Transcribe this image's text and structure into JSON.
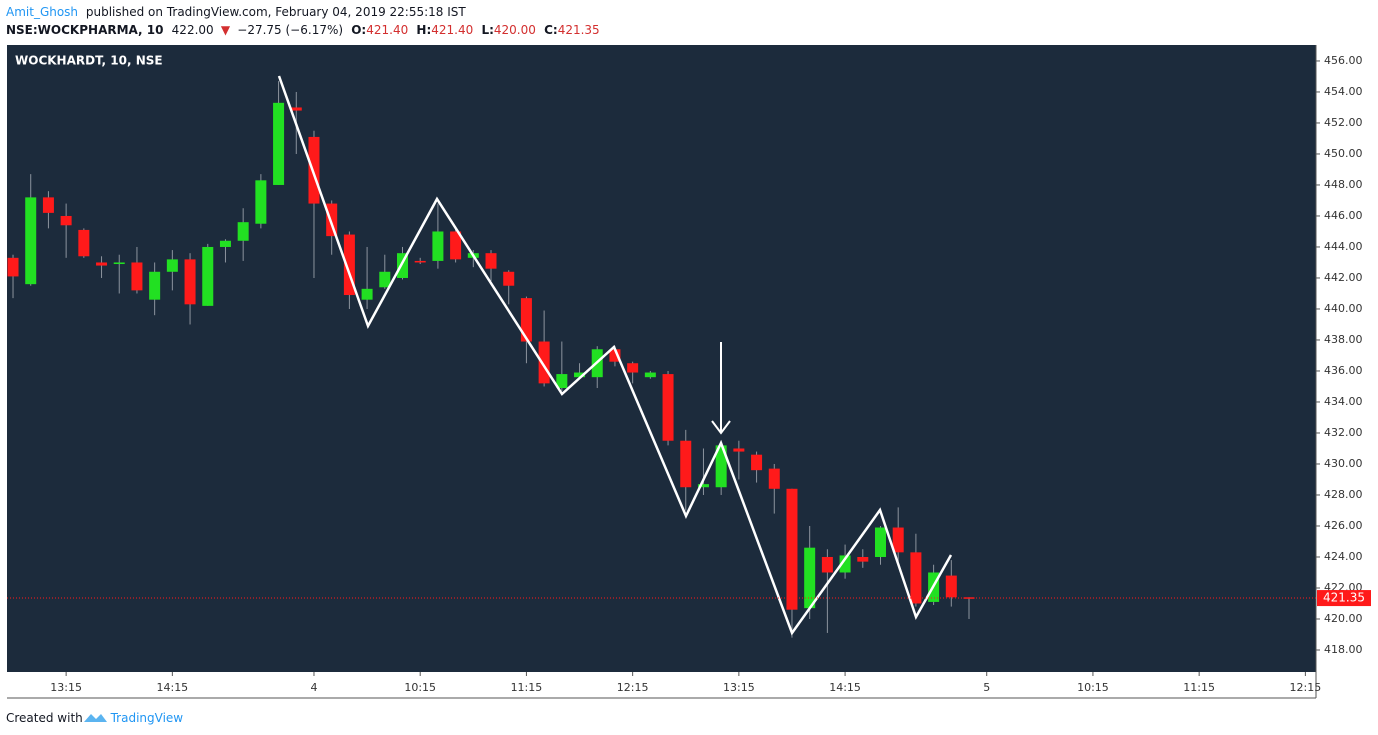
{
  "header": {
    "author": "Amit_Ghosh",
    "published": "published on TradingView.com, February 04, 2019 22:55:18 IST",
    "symbol": "NSE:WOCKPHARMA, 10",
    "price": "422.00",
    "direction": "▼",
    "change": "−27.75 (−6.17%)",
    "o_label": "O:",
    "o_value": "421.40",
    "h_label": "H:",
    "h_value": "421.40",
    "l_label": "L:",
    "l_value": "420.00",
    "c_label": "C:",
    "c_value": "421.35"
  },
  "footer": {
    "created": "Created with",
    "brand": "TradingView"
  },
  "chart_data": {
    "type": "candlestick",
    "title": "WOCKHARDT, 10, NSE",
    "open": [
      443.3,
      441.6,
      447.2,
      446.0,
      445.1,
      443.0,
      442.9,
      443.0,
      440.6,
      442.4,
      443.2,
      440.2,
      444.0,
      444.4,
      445.5,
      448.0,
      453.0,
      451.1,
      446.8,
      444.8,
      440.6,
      441.4,
      442.0,
      443.1,
      443.1,
      445.0,
      443.3,
      443.6,
      442.4,
      440.7,
      437.9,
      434.9,
      435.6,
      435.6,
      437.4,
      436.5,
      435.6,
      435.8,
      431.5,
      428.5,
      428.5,
      431.0,
      430.6,
      429.7,
      428.4,
      420.7,
      424.0,
      423.0,
      424.0,
      424.0,
      425.9,
      424.3,
      421.1,
      422.8,
      421.4
    ],
    "high": [
      443.5,
      448.7,
      447.6,
      446.8,
      445.2,
      443.4,
      443.5,
      444.0,
      443.0,
      443.8,
      443.6,
      444.2,
      444.5,
      446.5,
      448.7,
      454.7,
      454.0,
      451.5,
      447.0,
      445.0,
      444.0,
      443.5,
      444.0,
      443.3,
      446.8,
      445.2,
      443.8,
      443.8,
      442.5,
      440.8,
      439.9,
      437.9,
      436.5,
      437.6,
      437.6,
      436.6,
      436.0,
      436.0,
      432.2,
      431.0,
      431.3,
      431.5,
      430.8,
      430.0,
      428.4,
      426.0,
      424.5,
      424.8,
      424.5,
      426.0,
      427.2,
      425.5,
      423.5,
      423.8,
      421.4
    ],
    "low": [
      440.7,
      441.5,
      445.2,
      443.3,
      443.3,
      442.0,
      441.0,
      441.0,
      439.6,
      441.2,
      439.0,
      440.2,
      443.0,
      443.1,
      445.2,
      448.0,
      450.0,
      442.0,
      443.5,
      440.0,
      440.0,
      441.3,
      441.9,
      442.9,
      442.6,
      443.0,
      442.7,
      441.8,
      440.3,
      436.5,
      435.0,
      434.7,
      435.5,
      434.9,
      436.3,
      435.2,
      435.5,
      431.2,
      427.0,
      428.0,
      428.0,
      429.0,
      428.8,
      426.8,
      418.8,
      420.0,
      419.1,
      422.6,
      423.3,
      423.5,
      423.7,
      420.8,
      420.9,
      420.8,
      420.0
    ],
    "close": [
      442.1,
      447.2,
      446.2,
      445.4,
      443.4,
      442.8,
      443.0,
      441.2,
      442.4,
      443.2,
      440.3,
      444.0,
      444.4,
      445.6,
      448.3,
      453.3,
      452.8,
      446.8,
      444.7,
      440.9,
      441.3,
      442.4,
      443.6,
      443.0,
      445.0,
      443.2,
      443.6,
      442.6,
      441.5,
      437.9,
      435.2,
      435.8,
      435.9,
      437.4,
      436.6,
      435.9,
      435.9,
      431.5,
      428.5,
      428.7,
      431.2,
      430.8,
      429.6,
      428.4,
      420.6,
      424.6,
      423.0,
      424.1,
      423.7,
      425.9,
      424.3,
      421.0,
      423.0,
      421.4,
      421.35
    ],
    "up_color": "#22e022",
    "down_color": "#ff1a1a",
    "wick_color": "#8c949e",
    "background": "#1c2b3c",
    "last_price": 421.35,
    "last_price_color": "#ff1a1a",
    "ylim": [
      416.58,
      457.03
    ],
    "yticks": [
      {
        "value": 418,
        "label": "418.00"
      },
      {
        "value": 420,
        "label": "420.00"
      },
      {
        "value": 422,
        "label": "422.00"
      },
      {
        "value": 424,
        "label": "424.00"
      },
      {
        "value": 426,
        "label": "426.00"
      },
      {
        "value": 428,
        "label": "428.00"
      },
      {
        "value": 430,
        "label": "430.00"
      },
      {
        "value": 432,
        "label": "432.00"
      },
      {
        "value": 434,
        "label": "434.00"
      },
      {
        "value": 436,
        "label": "436.00"
      },
      {
        "value": 438,
        "label": "438.00"
      },
      {
        "value": 440,
        "label": "440.00"
      },
      {
        "value": 442,
        "label": "442.00"
      },
      {
        "value": 444,
        "label": "444.00"
      },
      {
        "value": 446,
        "label": "446.00"
      },
      {
        "value": 448,
        "label": "448.00"
      },
      {
        "value": 450,
        "label": "450.00"
      },
      {
        "value": 452,
        "label": "452.00"
      },
      {
        "value": 454,
        "label": "454.00"
      },
      {
        "value": 456,
        "label": "456.00"
      }
    ],
    "xlim": [
      -0.34,
      73.6
    ],
    "xticks": [
      {
        "value": 3,
        "label": "13:15"
      },
      {
        "value": 9,
        "label": "14:15"
      },
      {
        "value": 17,
        "label": "4"
      },
      {
        "value": 23,
        "label": "10:15"
      },
      {
        "value": 29,
        "label": "11:15"
      },
      {
        "value": 35,
        "label": "12:15"
      },
      {
        "value": 41,
        "label": "13:15"
      },
      {
        "value": 47,
        "label": "14:15"
      },
      {
        "value": 55,
        "label": "5"
      },
      {
        "value": 61,
        "label": "10:15"
      },
      {
        "value": 67,
        "label": "11:15"
      },
      {
        "value": 73,
        "label": "12:15"
      }
    ]
  }
}
